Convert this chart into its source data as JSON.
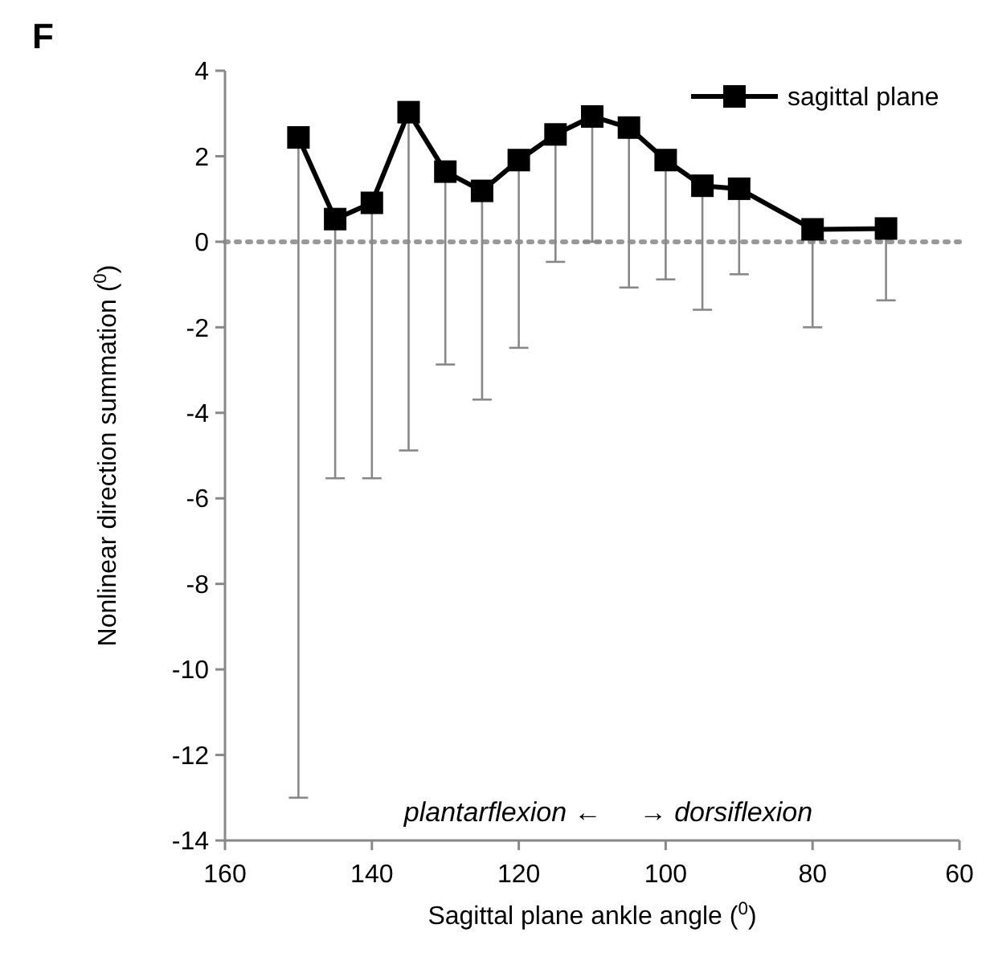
{
  "chart_data": {
    "type": "line",
    "title": "F",
    "xlabel": "Sagittal plane ankle angle ($^{0}$)",
    "ylabel": "Nonlinear direction summation  ($^{0}$)",
    "x": [
      150,
      145,
      140,
      135,
      130,
      125,
      120,
      115,
      110,
      105,
      100,
      95,
      90,
      80,
      70
    ],
    "series": [
      {
        "name": "sagittal plane",
        "color": "#000000",
        "values": [
          2.44,
          0.53,
          0.91,
          3.03,
          1.64,
          1.19,
          1.91,
          2.51,
          2.93,
          2.67,
          1.91,
          1.31,
          1.24,
          0.29,
          0.31
        ],
        "errors": [
          [
            -13.0,
            2.44
          ],
          [
            -5.53,
            0.53
          ],
          [
            -5.53,
            0.91
          ],
          [
            -4.88,
            3.03
          ],
          [
            -2.87,
            1.64
          ],
          [
            -3.69,
            1.19
          ],
          [
            -2.48,
            1.91
          ],
          [
            -0.47,
            2.51
          ],
          [
            0,
            2.93
          ],
          [
            -1.07,
            2.67
          ],
          [
            -0.88,
            1.91
          ],
          [
            -1.59,
            1.31
          ],
          [
            -0.76,
            1.24
          ],
          [
            -2.0,
            0.29
          ],
          [
            -1.37,
            0.31
          ]
        ]
      }
    ],
    "xlim": [
      160,
      60
    ],
    "xticks": [
      160,
      140,
      120,
      100,
      80,
      60
    ],
    "ylim": [
      -14,
      4
    ],
    "yticks": [
      -14,
      -12,
      -10,
      -8,
      -6,
      -4,
      -2,
      0,
      2,
      4
    ],
    "ref_lines": [
      {
        "axis": "y",
        "value": 0,
        "color": "#999999",
        "line_style": "dotted"
      }
    ],
    "annotations": [
      "plantarflexion ←     → dorsiflexion"
    ],
    "marker": "square",
    "line_style": "solid",
    "legend": "top right",
    "grid": false
  }
}
